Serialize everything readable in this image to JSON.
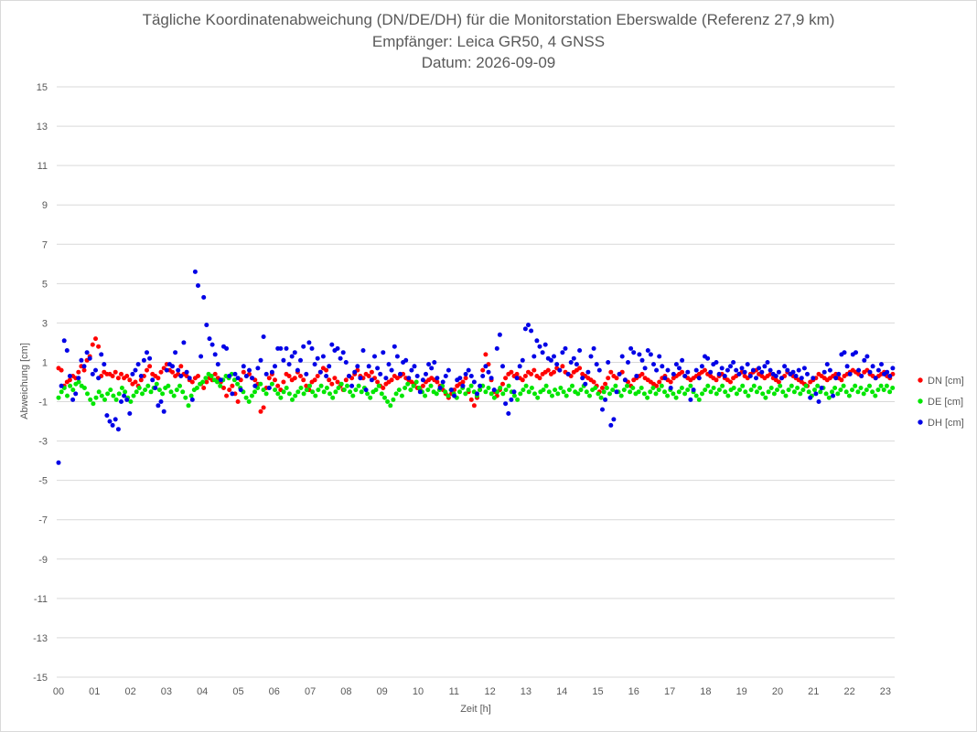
{
  "chart_data": {
    "type": "scatter",
    "title": "Tägliche Koordinatenabweichung (DN/DE/DH) für die Monitorstation Eberswalde (Referenz 27,9 km)",
    "subtitle_receiver": "Empfänger: Leica GR50, 4 GNSS",
    "subtitle_date": "Datum: 2026-09-09",
    "xlabel": "Zeit [h]",
    "ylabel": "Abweichung [cm]",
    "xlim": [
      0,
      23.6
    ],
    "ylim": [
      -15,
      15
    ],
    "x_ticks": [
      "00",
      "01",
      "02",
      "03",
      "04",
      "05",
      "06",
      "07",
      "08",
      "09",
      "10",
      "11",
      "12",
      "13",
      "14",
      "15",
      "16",
      "17",
      "18",
      "19",
      "20",
      "21",
      "22",
      "23"
    ],
    "y_ticks": [
      "15",
      "13",
      "11",
      "9",
      "7",
      "5",
      "3",
      "1",
      "-1",
      "-3",
      "-5",
      "-7",
      "-9",
      "-11",
      "-13",
      "-15"
    ],
    "grid": "horizontal",
    "legend_position": "right",
    "sample_interval_h": 0.033,
    "series": [
      {
        "name": "DN [cm]",
        "color": "#ff0000",
        "values": [
          0.7,
          0.6,
          -0.2,
          0.0,
          0.1,
          0.3,
          0.2,
          0.5,
          0.8,
          0.6,
          1.1,
          1.3,
          1.9,
          2.2,
          1.8,
          0.3,
          0.5,
          0.4,
          0.4,
          0.3,
          0.5,
          0.2,
          0.4,
          0.2,
          0.3,
          0.1,
          -0.1,
          0.0,
          -0.2,
          0.1,
          0.3,
          0.6,
          0.8,
          0.4,
          0.3,
          0.2,
          0.5,
          0.7,
          0.9,
          0.6,
          0.5,
          0.3,
          0.4,
          0.8,
          0.4,
          0.3,
          0.1,
          0.0,
          0.2,
          0.3,
          -0.1,
          -0.3,
          0.0,
          0.2,
          0.1,
          0.4,
          0.2,
          0.0,
          -0.3,
          -0.7,
          -0.4,
          -0.2,
          -0.6,
          -1.0,
          0.1,
          0.5,
          0.3,
          0.4,
          0.2,
          0.1,
          -0.1,
          -1.5,
          -1.3,
          -0.3,
          0.2,
          0.4,
          0.1,
          -0.2,
          -0.4,
          0.0,
          0.4,
          0.3,
          0.1,
          0.2,
          0.5,
          0.3,
          0.1,
          -0.2,
          -0.4,
          0.0,
          0.1,
          0.3,
          0.5,
          0.7,
          0.6,
          0.1,
          -0.1,
          0.2,
          0.0,
          -0.2,
          -0.4,
          0.1,
          0.3,
          0.2,
          0.4,
          0.6,
          0.3,
          0.2,
          0.4,
          0.3,
          0.5,
          0.2,
          0.0,
          -0.2,
          -0.3,
          -0.1,
          0.0,
          0.1,
          0.3,
          0.2,
          0.3,
          0.4,
          0.2,
          0.1,
          0.0,
          -0.1,
          -0.3,
          -0.4,
          -0.2,
          0.0,
          0.1,
          0.2,
          0.1,
          0.0,
          -0.2,
          -0.4,
          -0.6,
          -0.8,
          -0.6,
          -0.4,
          -0.2,
          -0.1,
          0.0,
          0.2,
          -0.5,
          -0.9,
          -1.2,
          -0.8,
          -0.4,
          0.6,
          1.4,
          0.9,
          0.1,
          -0.5,
          -0.7,
          -0.4,
          -0.1,
          0.2,
          0.4,
          0.5,
          0.3,
          0.4,
          0.2,
          0.1,
          0.3,
          0.5,
          0.4,
          0.6,
          0.3,
          0.2,
          0.4,
          0.5,
          0.6,
          0.4,
          0.5,
          0.7,
          0.6,
          0.8,
          0.5,
          0.4,
          0.3,
          0.5,
          0.6,
          0.7,
          0.4,
          0.3,
          0.2,
          0.1,
          0.0,
          -0.2,
          -0.5,
          -0.3,
          -0.1,
          0.2,
          0.5,
          0.3,
          0.2,
          0.4,
          0.5,
          0.1,
          0.0,
          -0.2,
          0.1,
          0.2,
          0.3,
          0.4,
          0.2,
          0.1,
          0.0,
          -0.1,
          -0.2,
          0.0,
          0.2,
          0.3,
          0.1,
          0.0,
          0.2,
          0.3,
          0.4,
          0.5,
          0.3,
          0.2,
          0.1,
          0.2,
          0.3,
          0.4,
          0.5,
          0.6,
          0.4,
          0.3,
          0.2,
          0.1,
          0.3,
          0.4,
          0.2,
          0.1,
          0.0,
          0.2,
          0.3,
          0.4,
          0.5,
          0.3,
          0.2,
          0.4,
          0.5,
          0.6,
          0.4,
          0.3,
          0.2,
          0.3,
          0.4,
          0.2,
          0.1,
          0.0,
          0.2,
          0.3,
          0.5,
          0.4,
          0.3,
          0.2,
          0.1,
          0.0,
          -0.1,
          -0.2,
          0.0,
          0.1,
          0.2,
          0.4,
          0.3,
          0.2,
          0.1,
          0.2,
          0.3,
          0.4,
          0.2,
          0.1,
          0.3,
          0.4,
          0.5,
          0.6,
          0.5,
          0.4,
          0.3,
          0.5,
          0.6,
          0.4,
          0.3,
          0.2,
          0.3,
          0.4,
          0.5,
          0.3,
          0.2,
          0.4,
          0.5,
          0.6,
          0.4,
          0.5
        ],
        "values_note": "approximate reading"
      },
      {
        "name": "DE [cm]",
        "color": "#00e600",
        "values": [
          -0.8,
          -0.5,
          -0.3,
          -0.7,
          -0.2,
          -0.4,
          -0.1,
          0.0,
          -0.2,
          -0.3,
          -0.6,
          -0.9,
          -1.1,
          -0.8,
          -0.5,
          -0.7,
          -0.9,
          -0.6,
          -0.4,
          -0.7,
          -0.9,
          -0.6,
          -0.3,
          -0.5,
          -0.8,
          -1.0,
          -0.7,
          -0.5,
          -0.3,
          -0.6,
          -0.4,
          -0.2,
          -0.5,
          -0.3,
          -0.1,
          -0.4,
          -0.6,
          -0.3,
          -0.2,
          -0.5,
          -0.7,
          -0.4,
          -0.2,
          -0.5,
          -0.8,
          -1.2,
          -0.7,
          -0.4,
          -0.3,
          -0.1,
          0.0,
          0.2,
          0.4,
          0.3,
          0.1,
          0.0,
          -0.2,
          0.1,
          0.3,
          0.2,
          0.4,
          0.1,
          -0.1,
          -0.3,
          -0.5,
          -0.8,
          -1.0,
          -0.7,
          -0.5,
          -0.3,
          -0.1,
          -0.4,
          -0.6,
          -0.3,
          -0.1,
          -0.4,
          -0.6,
          -0.8,
          -0.5,
          -0.3,
          -0.6,
          -0.9,
          -0.7,
          -0.5,
          -0.3,
          -0.6,
          -0.4,
          -0.2,
          -0.5,
          -0.7,
          -0.4,
          -0.2,
          -0.5,
          -0.3,
          -0.6,
          -0.8,
          -0.5,
          -0.3,
          -0.1,
          -0.4,
          -0.2,
          -0.5,
          -0.7,
          -0.4,
          -0.2,
          -0.5,
          -0.3,
          -0.6,
          -0.8,
          -0.5,
          -0.4,
          -0.2,
          -0.6,
          -0.8,
          -1.0,
          -1.2,
          -0.9,
          -0.6,
          -0.4,
          -0.7,
          -0.3,
          -0.1,
          -0.4,
          -0.2,
          0.0,
          -0.3,
          -0.5,
          -0.7,
          -0.4,
          -0.2,
          -0.5,
          -0.6,
          -0.4,
          -0.2,
          -0.5,
          -0.7,
          -0.4,
          -0.6,
          -0.8,
          -0.5,
          -0.3,
          -0.6,
          -0.4,
          -0.2,
          -0.5,
          -0.7,
          -0.4,
          -0.2,
          -0.5,
          -0.3,
          -0.6,
          -0.8,
          -0.5,
          -0.3,
          -0.6,
          -0.4,
          -0.2,
          -0.5,
          -0.7,
          -0.9,
          -0.6,
          -0.4,
          -0.2,
          -0.5,
          -0.3,
          -0.6,
          -0.8,
          -0.5,
          -0.4,
          -0.2,
          -0.5,
          -0.7,
          -0.4,
          -0.6,
          -0.3,
          -0.5,
          -0.7,
          -0.4,
          -0.2,
          -0.5,
          -0.6,
          -0.4,
          -0.2,
          -0.5,
          -0.7,
          -0.4,
          -0.3,
          -0.6,
          -0.8,
          -0.5,
          -0.3,
          -0.6,
          -0.4,
          -0.2,
          -0.5,
          -0.7,
          -0.4,
          -0.2,
          -0.5,
          -0.3,
          -0.6,
          -0.5,
          -0.3,
          -0.6,
          -0.8,
          -0.5,
          -0.3,
          -0.6,
          -0.4,
          -0.2,
          -0.5,
          -0.7,
          -0.4,
          -0.6,
          -0.8,
          -0.5,
          -0.3,
          -0.6,
          -0.4,
          -0.2,
          -0.5,
          -0.7,
          -0.9,
          -0.6,
          -0.4,
          -0.2,
          -0.5,
          -0.3,
          -0.6,
          -0.4,
          -0.2,
          -0.5,
          -0.7,
          -0.4,
          -0.3,
          -0.6,
          -0.4,
          -0.2,
          -0.5,
          -0.7,
          -0.4,
          -0.2,
          -0.5,
          -0.3,
          -0.6,
          -0.8,
          -0.5,
          -0.3,
          -0.6,
          -0.4,
          -0.2,
          -0.5,
          -0.7,
          -0.4,
          -0.2,
          -0.5,
          -0.3,
          -0.6,
          -0.4,
          -0.2,
          -0.5,
          -0.7,
          -0.4,
          -0.2,
          -0.5,
          -0.3,
          -0.6,
          -0.8,
          -0.5,
          -0.3,
          -0.6,
          -0.4,
          -0.2,
          -0.5,
          -0.7,
          -0.4,
          -0.2,
          -0.5,
          -0.3,
          -0.6,
          -0.4,
          -0.2,
          -0.5,
          -0.7,
          -0.4,
          -0.2,
          -0.4,
          -0.2,
          -0.5,
          -0.3,
          -0.1,
          -0.4,
          -0.2,
          -0.3
        ],
        "values_note": "approximate reading"
      },
      {
        "name": "DH [cm]",
        "color": "#0000e6",
        "values": [
          -4.1,
          -0.2,
          2.1,
          1.6,
          0.3,
          -0.9,
          -0.6,
          0.2,
          1.1,
          0.8,
          1.5,
          1.2,
          0.4,
          0.6,
          0.2,
          1.4,
          0.9,
          -1.7,
          -2.0,
          -2.2,
          -1.9,
          -2.4,
          -1.0,
          -0.7,
          -0.9,
          -1.6,
          0.4,
          0.6,
          0.9,
          0.3,
          1.1,
          1.5,
          1.2,
          0.1,
          -0.3,
          -1.2,
          -1.0,
          -1.5,
          0.6,
          0.9,
          0.8,
          1.5,
          0.6,
          0.3,
          2.0,
          0.5,
          0.2,
          -0.9,
          5.6,
          4.9,
          1.3,
          4.3,
          2.9,
          2.2,
          1.9,
          1.4,
          0.9,
          0.1,
          1.8,
          1.7,
          0.3,
          -0.6,
          0.4,
          0.2,
          -0.4,
          0.8,
          0.3,
          0.6,
          0.2,
          -0.2,
          0.7,
          1.1,
          2.3,
          0.4,
          -0.3,
          0.5,
          0.8,
          1.7,
          1.7,
          1.1,
          1.7,
          0.9,
          1.3,
          1.5,
          0.6,
          1.1,
          1.8,
          0.4,
          2.0,
          1.7,
          0.9,
          1.2,
          0.5,
          1.3,
          0.3,
          0.8,
          1.9,
          1.6,
          1.7,
          1.2,
          1.5,
          1.0,
          0.3,
          -0.2,
          0.5,
          0.8,
          0.2,
          1.6,
          -0.4,
          0.8,
          0.1,
          1.3,
          0.7,
          0.4,
          1.5,
          0.2,
          0.9,
          0.6,
          1.8,
          1.3,
          0.4,
          1.0,
          1.1,
          0.2,
          0.6,
          0.8,
          0.3,
          -0.5,
          0.1,
          0.4,
          0.9,
          0.7,
          1.0,
          0.2,
          -0.3,
          0.0,
          0.3,
          0.6,
          -0.4,
          -0.7,
          0.1,
          0.2,
          -0.2,
          0.4,
          0.6,
          0.3,
          0.0,
          -0.6,
          -0.2,
          0.3,
          0.8,
          0.5,
          0.2,
          -0.4,
          1.7,
          2.4,
          0.8,
          -1.1,
          -1.6,
          -0.9,
          -0.5,
          0.2,
          0.8,
          1.1,
          2.7,
          2.9,
          2.6,
          1.3,
          2.1,
          1.8,
          1.5,
          1.9,
          1.2,
          1.1,
          1.3,
          0.9,
          0.6,
          1.5,
          1.7,
          0.4,
          1.0,
          1.2,
          0.9,
          1.6,
          0.2,
          -0.1,
          0.5,
          1.3,
          1.7,
          0.9,
          0.6,
          -1.4,
          -0.9,
          1.0,
          -2.2,
          -1.9,
          -0.5,
          0.4,
          1.3,
          0.1,
          1.0,
          1.7,
          1.5,
          0.3,
          1.4,
          1.1,
          0.7,
          1.6,
          1.4,
          0.9,
          0.6,
          1.3,
          0.8,
          0.2,
          0.6,
          -0.3,
          0.4,
          0.9,
          0.7,
          1.1,
          0.3,
          0.5,
          -0.9,
          -0.4,
          0.6,
          0.2,
          0.8,
          1.3,
          1.2,
          0.5,
          0.9,
          1.0,
          0.4,
          0.7,
          0.3,
          0.6,
          0.8,
          1.0,
          0.6,
          0.4,
          0.7,
          0.5,
          0.9,
          0.3,
          0.6,
          0.2,
          0.7,
          0.5,
          0.8,
          1.0,
          0.6,
          0.4,
          0.3,
          0.5,
          0.2,
          0.8,
          0.6,
          0.4,
          0.5,
          0.3,
          0.6,
          0.2,
          0.7,
          0.4,
          -0.8,
          0.2,
          -0.6,
          -1.0,
          -0.3,
          0.5,
          0.9,
          0.6,
          -0.7,
          0.2,
          0.4,
          1.4,
          1.5,
          0.8,
          0.4,
          1.4,
          1.5,
          0.6,
          0.3,
          1.1,
          1.3,
          0.5,
          0.8,
          0.2,
          0.6,
          0.9,
          0.4,
          0.5,
          0.3,
          0.7,
          0.6,
          0.9,
          0.5,
          0.2
        ],
        "values_note": "approximate reading"
      }
    ]
  },
  "legend_labels": [
    "DN [cm]",
    "DE [cm]",
    "DH [cm]"
  ],
  "legend_colors": [
    "#ff0000",
    "#00e600",
    "#0000e6"
  ]
}
